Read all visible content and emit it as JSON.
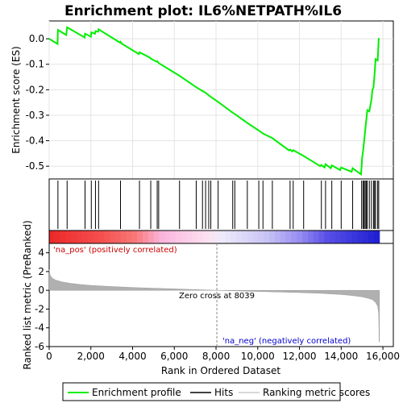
{
  "chart_data": {
    "type": "line",
    "title": "Enrichment plot: IL6%NETPATH%IL6",
    "top_panel": {
      "ylabel": "Enrichment score (ES)",
      "ylim": [
        -0.55,
        0.07
      ],
      "yticks": [
        0.0,
        -0.1,
        -0.2,
        -0.3,
        -0.4,
        -0.5
      ],
      "ytick_labels": [
        "0.0",
        "-0.1",
        "-0.2",
        "-0.3",
        "-0.4",
        "-0.5"
      ],
      "series": [
        {
          "name": "Enrichment profile",
          "color": "#00ee00",
          "x": [
            0,
            400,
            420,
            820,
            860,
            1700,
            1720,
            2000,
            2020,
            2200,
            2220,
            2350,
            2370,
            3400,
            3420,
            3500,
            4300,
            4330,
            4850,
            4870,
            5150,
            5180,
            5250,
            6250,
            7050,
            7350,
            7500,
            7650,
            7750,
            8100,
            8800,
            8900,
            9500,
            10050,
            10250,
            10700,
            11500,
            11550,
            11650,
            11700,
            12100,
            12200,
            13000,
            13050,
            13200,
            13250,
            13500,
            13550,
            13950,
            14000,
            14500,
            14550,
            14950,
            14980,
            15000,
            15050,
            15100,
            15150,
            15200,
            15250,
            15350,
            15450,
            15500,
            15550,
            15600,
            15650,
            15750,
            15800
          ],
          "y": [
            0.0,
            -0.02,
            0.035,
            0.015,
            0.045,
            0.005,
            0.02,
            0.008,
            0.025,
            0.02,
            0.03,
            0.028,
            0.037,
            -0.015,
            -0.012,
            -0.02,
            -0.06,
            -0.053,
            -0.075,
            -0.078,
            -0.09,
            -0.088,
            -0.095,
            -0.145,
            -0.19,
            -0.205,
            -0.212,
            -0.222,
            -0.228,
            -0.248,
            -0.29,
            -0.295,
            -0.33,
            -0.36,
            -0.372,
            -0.39,
            -0.438,
            -0.435,
            -0.442,
            -0.437,
            -0.455,
            -0.46,
            -0.5,
            -0.495,
            -0.505,
            -0.492,
            -0.508,
            -0.497,
            -0.515,
            -0.505,
            -0.522,
            -0.508,
            -0.532,
            -0.5,
            -0.47,
            -0.44,
            -0.4,
            -0.36,
            -0.32,
            -0.28,
            -0.285,
            -0.24,
            -0.2,
            -0.19,
            -0.14,
            -0.08,
            -0.085,
            0.003
          ]
        }
      ]
    },
    "hits": [
      420,
      860,
      1720,
      2020,
      2220,
      2370,
      3420,
      4330,
      4870,
      5180,
      5250,
      6250,
      7050,
      7350,
      7500,
      7650,
      7750,
      8100,
      8800,
      8900,
      9500,
      10050,
      10250,
      10700,
      11550,
      11700,
      12200,
      13050,
      13250,
      13550,
      14000,
      14550,
      14980,
      15050,
      15100,
      15150,
      15200,
      15250,
      15350,
      15450,
      15550,
      15600,
      15650,
      15750,
      15800
    ],
    "bottom_panel": {
      "ylabel": "Ranked list metric (PreRanked)",
      "xlabel": "Rank in Ordered Dataset",
      "ylim": [
        -6,
        5
      ],
      "yticks": [
        4,
        2,
        0,
        -2,
        -4,
        -6
      ],
      "ytick_labels": [
        "4",
        "2",
        "0",
        "-2",
        "-4",
        "-6"
      ],
      "xlim": [
        0,
        16500
      ],
      "xticks": [
        0,
        2000,
        4000,
        6000,
        8000,
        10000,
        12000,
        14000,
        16000
      ],
      "xtick_labels": [
        "0",
        "2,000",
        "4,000",
        "6,000",
        "8,000",
        "10,000",
        "12,000",
        "14,000",
        "16,000"
      ],
      "metric_profile": {
        "x": [
          0,
          50,
          150,
          300,
          600,
          1000,
          1500,
          2000,
          3000,
          4000,
          5000,
          6000,
          7000,
          8039,
          9000,
          10000,
          11000,
          12000,
          13000,
          14000,
          14500,
          15000,
          15300,
          15500,
          15650,
          15750,
          15800,
          15820,
          15830
        ],
        "y": [
          2.2,
          1.6,
          1.3,
          1.1,
          0.9,
          0.75,
          0.62,
          0.52,
          0.4,
          0.3,
          0.22,
          0.15,
          0.08,
          0.0,
          -0.06,
          -0.12,
          -0.18,
          -0.24,
          -0.32,
          -0.45,
          -0.55,
          -0.7,
          -0.85,
          -1.0,
          -1.3,
          -1.7,
          -2.5,
          -5.5,
          -5.5
        ]
      },
      "zero_cross_label": "Zero cross at 8039",
      "zero_cross": 8039,
      "pos_label": "'na_pos' (positively correlated)",
      "neg_label": "'na_neg' (negatively correlated)"
    },
    "legend": {
      "placement": "bottom",
      "entries": [
        "Enrichment profile",
        "Hits",
        "Ranking metric scores"
      ]
    },
    "colors": {
      "profile": "#00ee00",
      "hits": "#000000",
      "metric": "#b0b0b0",
      "pos_label": "#cc0000",
      "neg_label": "#0000cc"
    }
  }
}
